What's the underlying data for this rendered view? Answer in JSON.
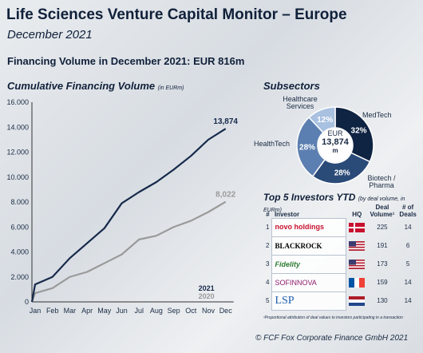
{
  "header": {
    "title": "Life Sciences Venture Capital Monitor – Europe",
    "subtitle": "December 2021",
    "financing_volume": "Financing Volume in December 2021: EUR 816m"
  },
  "chart_data": [
    {
      "type": "line",
      "title": "Cumulative Financing Volume",
      "title_unit": "(in EURm)",
      "categories": [
        "Jan",
        "Feb",
        "Mar",
        "Apr",
        "May",
        "Jun",
        "Jul",
        "Aug",
        "Sep",
        "Oct",
        "Nov",
        "Dec"
      ],
      "ylim": [
        0,
        16000
      ],
      "yticks": [
        "0",
        "2.000",
        "4.000",
        "6.000",
        "8.000",
        "10.000",
        "12.000",
        "14.000",
        "16.000"
      ],
      "series": [
        {
          "name": "2021",
          "color": "#16294a",
          "values": [
            1400,
            2000,
            3500,
            4700,
            5900,
            7900,
            8800,
            9600,
            10600,
            11700,
            13000,
            13874
          ],
          "end_label": "13,874"
        },
        {
          "name": "2020",
          "color": "#9a9a9a",
          "values": [
            700,
            1100,
            2000,
            2400,
            3100,
            3800,
            5000,
            5300,
            6000,
            6500,
            7200,
            8022
          ],
          "end_label": "8,022"
        }
      ],
      "grid": false,
      "legend": "bottom-right"
    },
    {
      "type": "pie",
      "title": "Subsectors",
      "center_label": "EUR",
      "center_value": "13,874",
      "center_unit": "m",
      "slices": [
        {
          "label": "MedTech",
          "value": 32,
          "pct_label": "32%",
          "color": "#0f2342"
        },
        {
          "label": "Biotech / Pharma",
          "value": 28,
          "pct_label": "28%",
          "color": "#2a4a78"
        },
        {
          "label": "HealthTech",
          "value": 28,
          "pct_label": "28%",
          "color": "#5b7fb0"
        },
        {
          "label": "Healthcare Services",
          "value": 12,
          "pct_label": "12%",
          "color": "#a9c1e0"
        }
      ]
    }
  ],
  "pie_labels": {
    "medtech": "MedTech",
    "biotech_1": "Biotech /",
    "biotech_2": "Pharma",
    "healthtech": "HealthTech",
    "healthcare_1": "Healthcare",
    "healthcare_2": "Services",
    "pct_medtech": "32%",
    "pct_biotech": "28%",
    "pct_healthtech": "28%",
    "pct_healthcare": "12%"
  },
  "investors": {
    "title": "Top 5 Investors YTD",
    "title_note": "(by deal volume, in EURm)",
    "headers": {
      "rank": "#",
      "investor": "Investor",
      "hq": "HQ",
      "deal_volume_1": "Deal",
      "deal_volume_2": "Volume¹",
      "deals_1": "# of",
      "deals_2": "Deals"
    },
    "rows": [
      {
        "rank": "1",
        "name": "novo holdings",
        "hq": "Denmark",
        "volume": "225",
        "deals": "14"
      },
      {
        "rank": "2",
        "name": "BLACKROCK",
        "hq": "United States",
        "volume": "191",
        "deals": "6"
      },
      {
        "rank": "3",
        "name": "Fidelity",
        "hq": "United States",
        "volume": "173",
        "deals": "5"
      },
      {
        "rank": "4",
        "name": "SOFINNOVA",
        "hq": "France",
        "volume": "159",
        "deals": "14"
      },
      {
        "rank": "5",
        "name": "LSP",
        "hq": "Netherlands",
        "volume": "130",
        "deals": "14"
      }
    ],
    "footnote": "¹Proportional attribution of deal values to investors participating in a transaction"
  },
  "footer": {
    "copyright": "© FCF Fox Corporate Finance GmbH 2021"
  },
  "colors": {
    "primary": "#16294a",
    "secondary": "#9a9a9a",
    "text": "#1a2b44"
  }
}
